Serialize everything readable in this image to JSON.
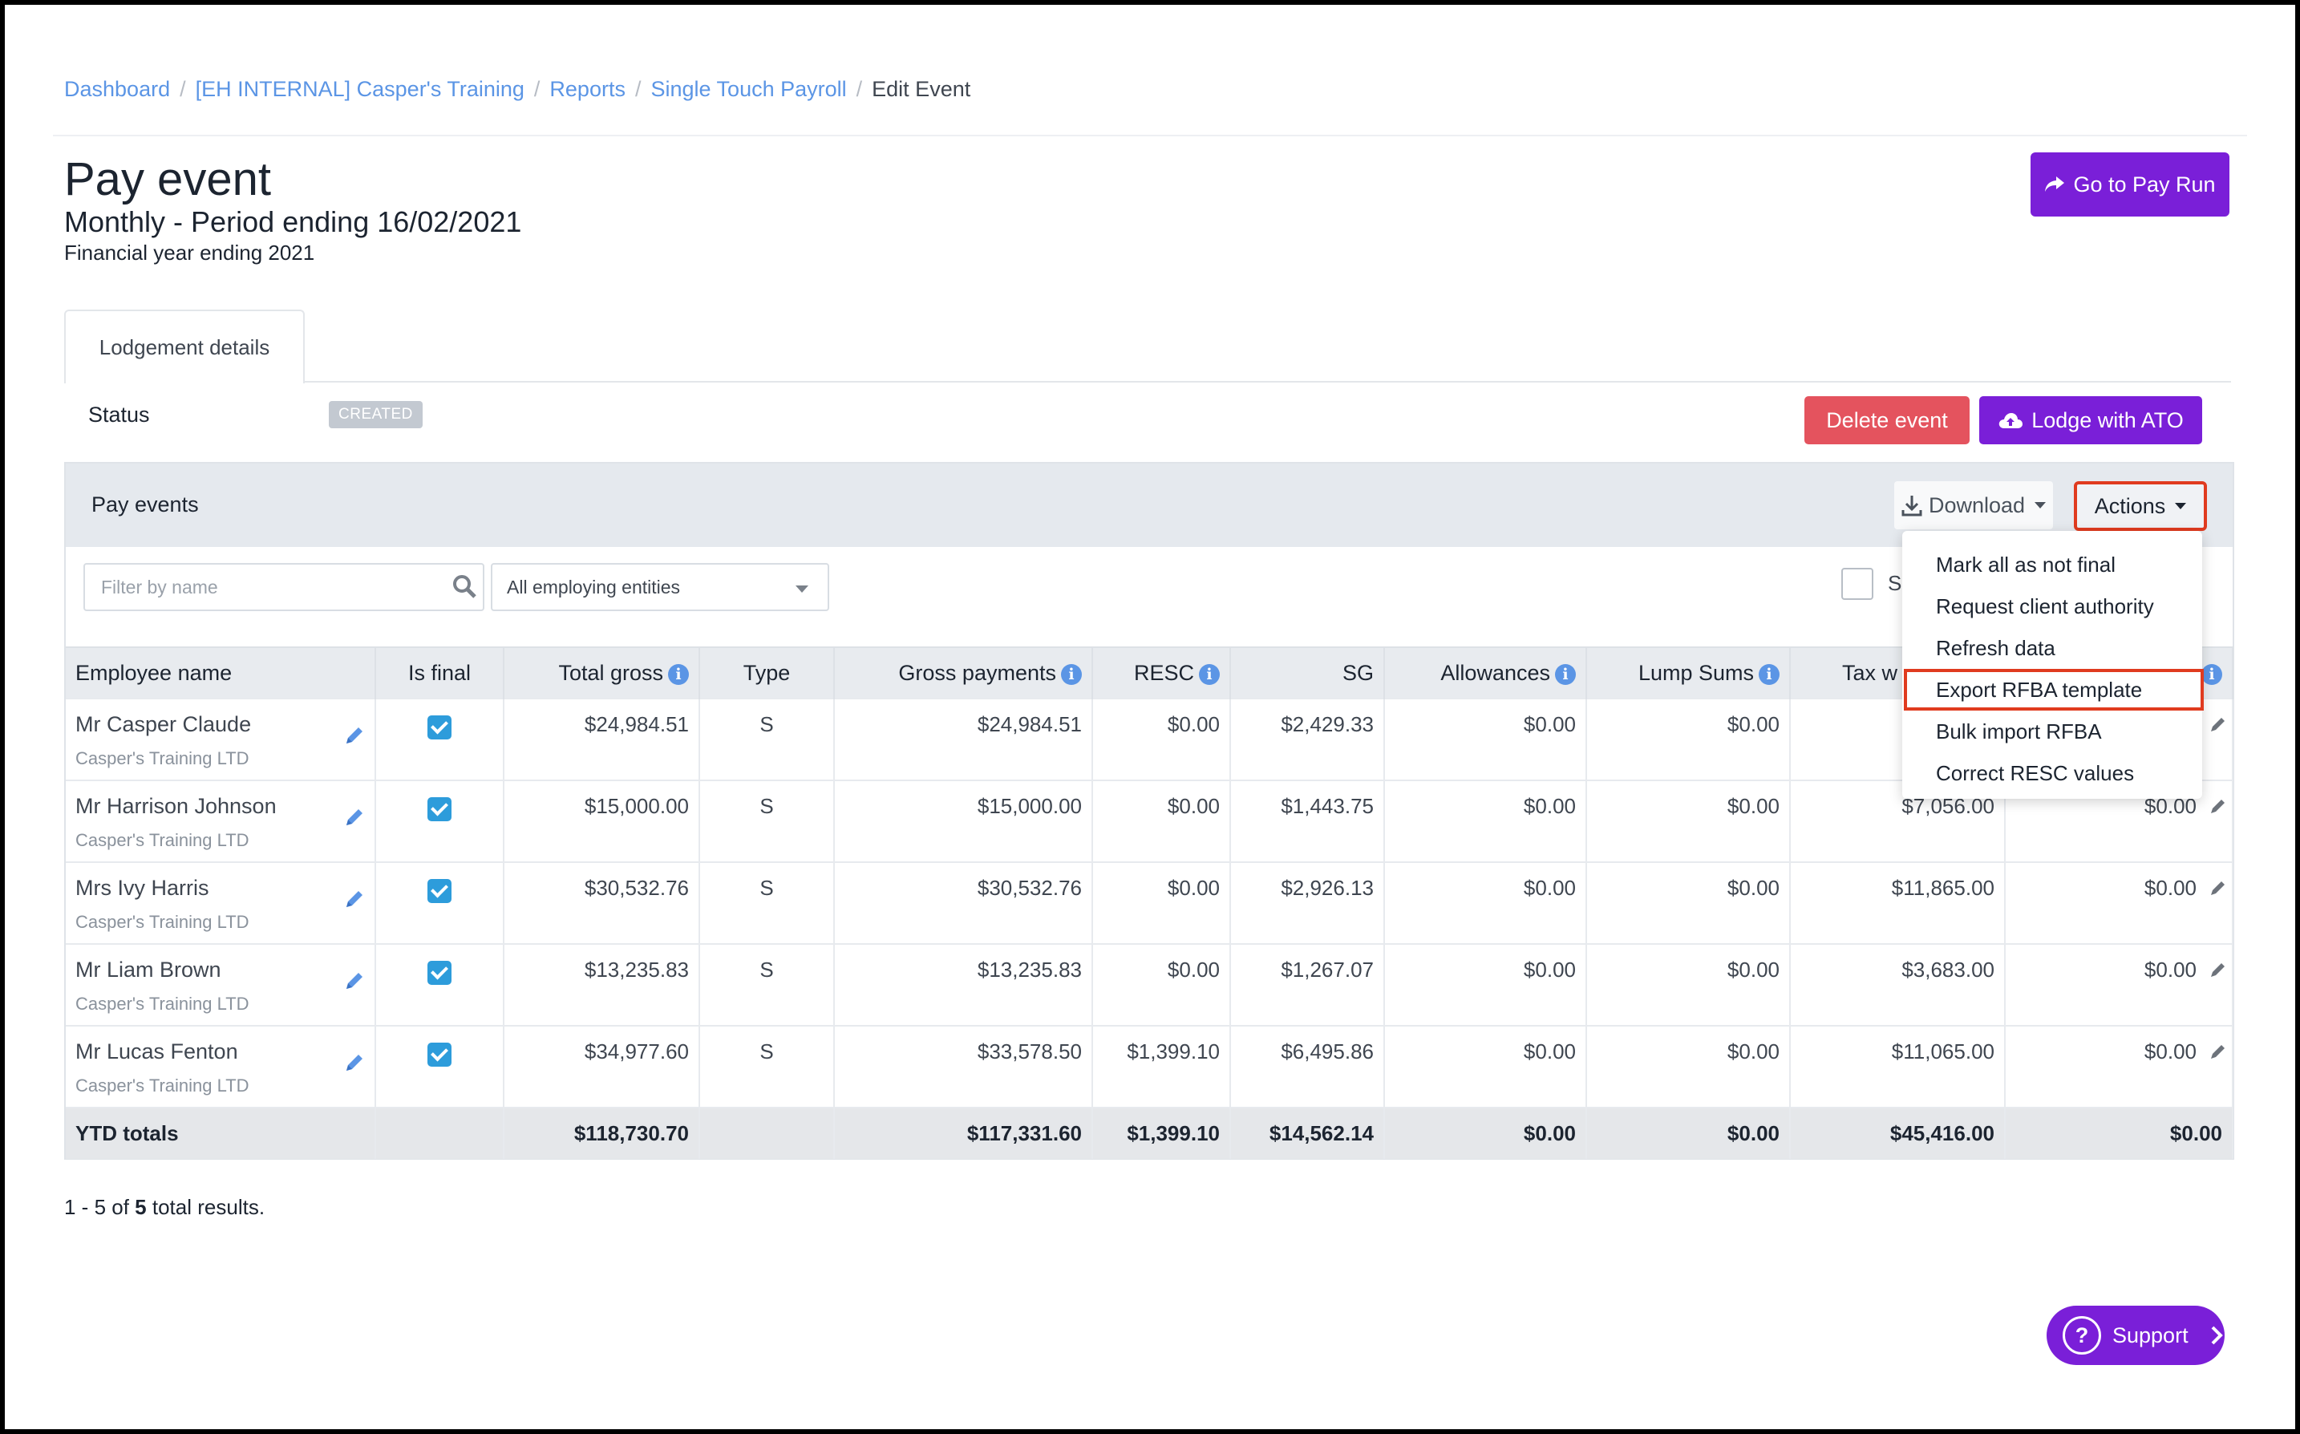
{
  "breadcrumb": {
    "items": [
      "Dashboard",
      "[EH INTERNAL] Casper's Training",
      "Reports",
      "Single Touch Payroll"
    ],
    "current": "Edit Event",
    "separator": "/"
  },
  "header": {
    "title": "Pay event",
    "subtitle": "Monthly - Period ending 16/02/2021",
    "financial_year": "Financial year ending 2021",
    "go_to_pay_run": "Go to Pay Run"
  },
  "tabs": {
    "lodgement": "Lodgement details"
  },
  "status": {
    "label": "Status",
    "badge": "CREATED"
  },
  "buttons": {
    "delete": "Delete event",
    "lodge": "Lodge with ATO"
  },
  "panel": {
    "title": "Pay events",
    "download": "Download",
    "actions": "Actions",
    "filter_placeholder": "Filter by name",
    "entity_select": "All employing entities",
    "select_all_label": "S"
  },
  "columns": [
    "Employee name",
    "Is final",
    "Total gross",
    "Type",
    "Gross payments",
    "RESC",
    "SG",
    "Allowances",
    "Lump Sums",
    "Tax w",
    ""
  ],
  "rows": [
    {
      "name": "Mr Casper Claude",
      "company": "Casper's Training LTD",
      "total_gross": "$24,984.51",
      "type": "S",
      "gross_payments": "$24,984.51",
      "resc": "$0.00",
      "sg": "$2,429.33",
      "allowances": "$0.00",
      "lump_sums": "$0.00",
      "tax": "$",
      "last": ""
    },
    {
      "name": "Mr Harrison Johnson",
      "company": "Casper's Training LTD",
      "total_gross": "$15,000.00",
      "type": "S",
      "gross_payments": "$15,000.00",
      "resc": "$0.00",
      "sg": "$1,443.75",
      "allowances": "$0.00",
      "lump_sums": "$0.00",
      "tax": "$7,056.00",
      "last": "$0.00"
    },
    {
      "name": "Mrs Ivy Harris",
      "company": "Casper's Training LTD",
      "total_gross": "$30,532.76",
      "type": "S",
      "gross_payments": "$30,532.76",
      "resc": "$0.00",
      "sg": "$2,926.13",
      "allowances": "$0.00",
      "lump_sums": "$0.00",
      "tax": "$11,865.00",
      "last": "$0.00"
    },
    {
      "name": "Mr Liam Brown",
      "company": "Casper's Training LTD",
      "total_gross": "$13,235.83",
      "type": "S",
      "gross_payments": "$13,235.83",
      "resc": "$0.00",
      "sg": "$1,267.07",
      "allowances": "$0.00",
      "lump_sums": "$0.00",
      "tax": "$3,683.00",
      "last": "$0.00"
    },
    {
      "name": "Mr Lucas Fenton",
      "company": "Casper's Training LTD",
      "total_gross": "$34,977.60",
      "type": "S",
      "gross_payments": "$33,578.50",
      "resc": "$1,399.10",
      "sg": "$6,495.86",
      "allowances": "$0.00",
      "lump_sums": "$0.00",
      "tax": "$11,065.00",
      "last": "$0.00"
    }
  ],
  "totals": {
    "label": "YTD totals",
    "total_gross": "$118,730.70",
    "gross_payments": "$117,331.60",
    "resc": "$1,399.10",
    "sg": "$14,562.14",
    "allowances": "$0.00",
    "lump_sums": "$0.00",
    "tax": "$45,416.00",
    "last": "$0.00"
  },
  "dropdown": {
    "items": [
      "Mark all as not final",
      "Request client authority",
      "Refresh data",
      "Export RFBA template",
      "Bulk import RFBA",
      "Correct RESC values"
    ]
  },
  "pagination": {
    "prefix": "1 - 5 of",
    "count": "5",
    "suffix": "total results."
  },
  "support": {
    "label": "Support"
  },
  "colors": {
    "accent": "#7a1fd8",
    "danger": "#e4535e",
    "link": "#5b95e5",
    "highlight_border": "#e03b1f",
    "check": "#2d9cdb"
  }
}
